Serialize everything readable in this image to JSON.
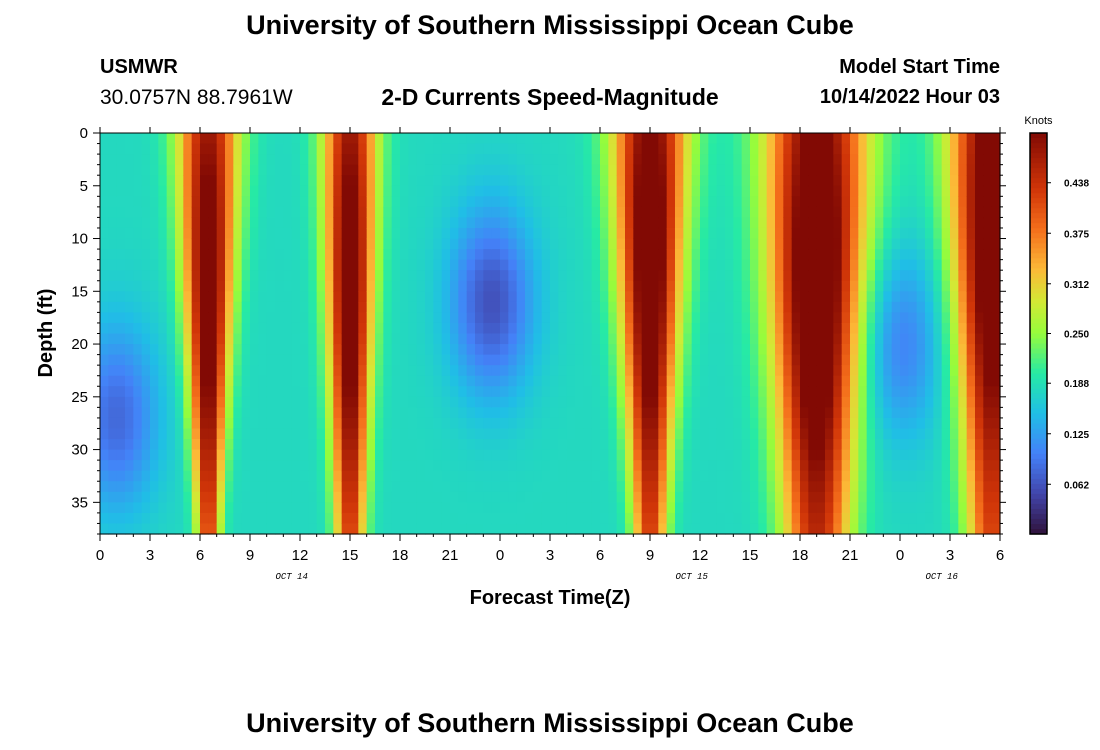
{
  "header": {
    "title": "University of Southern Mississippi Ocean Cube",
    "station": "USMWR",
    "coords": "30.0757N  88.7961W",
    "chart_title": "2-D Currents Speed-Magnitude",
    "start_label": "Model Start Time",
    "start_value": "10/14/2022 Hour 03"
  },
  "footer": {
    "title": "University of Southern Mississippi Ocean Cube"
  },
  "chart_data": {
    "type": "heatmap",
    "title": "2-D Currents Speed-Magnitude",
    "xlabel": "Forecast Time(Z)",
    "ylabel": "Depth (ft)",
    "x_ticks": [
      "0",
      "3",
      "6",
      "9",
      "12",
      "15",
      "18",
      "21",
      "0",
      "3",
      "6",
      "9",
      "12",
      "15",
      "18",
      "21",
      "0",
      "3",
      "6"
    ],
    "x_range_hours": [
      0,
      54
    ],
    "date_labels": [
      {
        "text": "OCT 14",
        "hour": 11.5
      },
      {
        "text": "OCT 15",
        "hour": 35.5
      },
      {
        "text": "OCT 16",
        "hour": 50.5
      }
    ],
    "y_ticks": [
      "0",
      "5",
      "10",
      "15",
      "20",
      "25",
      "30",
      "35"
    ],
    "y_range_ft": [
      0,
      38
    ],
    "colorbar": {
      "label": "Knots",
      "range": [
        0,
        0.5
      ],
      "ticks": [
        "0.062",
        "0.125",
        "0.188",
        "0.250",
        "0.312",
        "0.375",
        "0.438"
      ]
    },
    "ridges": [
      {
        "hour": 6.5,
        "amp": 0.36,
        "width_top": 1.8,
        "width_bottom": 0.7,
        "center_depth": 15
      },
      {
        "hour": 15,
        "amp": 0.36,
        "width_top": 1.6,
        "width_bottom": 0.9,
        "center_depth": 15
      },
      {
        "hour": 33,
        "amp": 0.38,
        "width_top": 2.2,
        "width_bottom": 1.0,
        "center_depth": 12
      },
      {
        "hour": 43,
        "amp": 0.4,
        "width_top": 3.0,
        "width_bottom": 2.0,
        "center_depth": 14
      },
      {
        "hour": 53.5,
        "amp": 0.38,
        "width_top": 2.5,
        "width_bottom": 1.5,
        "center_depth": 10
      }
    ],
    "troughs": [
      {
        "hour": 23.5,
        "depth": 16,
        "amp": 0.12
      },
      {
        "hour": 1,
        "depth": 27,
        "amp": 0.1
      },
      {
        "hour": 48,
        "depth": 20,
        "amp": 0.08
      }
    ],
    "background_speed": 0.18
  }
}
